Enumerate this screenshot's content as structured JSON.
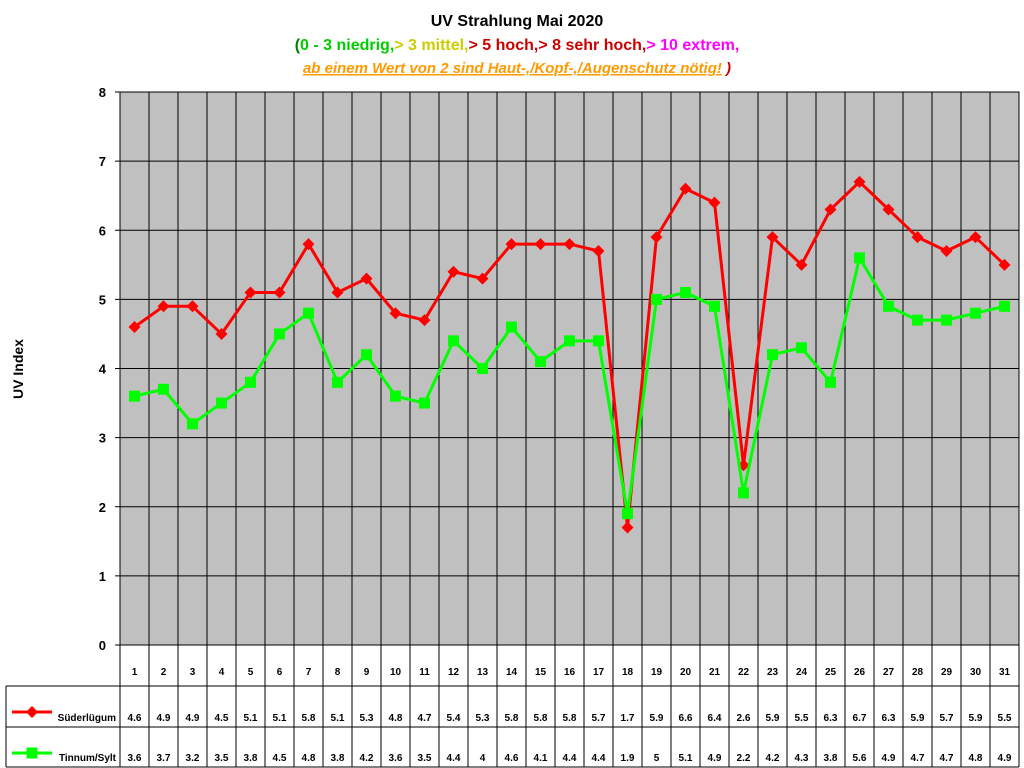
{
  "chart_data": {
    "type": "line",
    "title": "UV Strahlung Mai 2020",
    "subtitle_parts": [
      {
        "text": "(",
        "color": "#008000"
      },
      {
        "text": "0 - 3 niedrig,",
        "color": "#00cc00"
      },
      {
        "text": "> 3 mittel,",
        "color": "#cccc00"
      },
      {
        "text": "> 5 hoch,",
        "color": "#cc0000"
      },
      {
        "text": "> 8 sehr hoch,",
        "color": "#cc0000"
      },
      {
        "text": "> 10 extrem,",
        "color": "#ff00ff"
      }
    ],
    "note_text": "ab einem Wert von 2 sind Haut-,/Kopf-,/Augenschutz nötig!",
    "note_close": " )",
    "note_color": "#ff9900",
    "note_close_color": "#cc0000",
    "ylabel": "UV Index",
    "xlabel": "",
    "ylim": [
      0,
      8
    ],
    "yticks": [
      0,
      1,
      2,
      3,
      4,
      5,
      6,
      7,
      8
    ],
    "grid": true,
    "plot_background": "#c0c0c0",
    "legend_placement": "table-left",
    "categories": [
      "1",
      "2",
      "3",
      "4",
      "5",
      "6",
      "7",
      "8",
      "9",
      "10",
      "11",
      "12",
      "13",
      "14",
      "15",
      "16",
      "17",
      "18",
      "19",
      "20",
      "21",
      "22",
      "23",
      "24",
      "25",
      "26",
      "27",
      "28",
      "29",
      "30",
      "31"
    ],
    "series": [
      {
        "name": "Süderlügum",
        "color": "#ff0000",
        "marker": "diamond",
        "values": [
          4.6,
          4.9,
          4.9,
          4.5,
          5.1,
          5.1,
          5.8,
          5.1,
          5.3,
          4.8,
          4.7,
          5.4,
          5.3,
          5.8,
          5.8,
          5.8,
          5.7,
          1.7,
          5.9,
          6.6,
          6.4,
          2.6,
          5.9,
          5.5,
          6.3,
          6.7,
          6.3,
          5.9,
          5.7,
          5.9,
          5.5
        ],
        "labels": [
          "4.6",
          "4.9",
          "4.9",
          "4.5",
          "5.1",
          "5.1",
          "5.8",
          "5.1",
          "5.3",
          "4.8",
          "4.7",
          "5.4",
          "5.3",
          "5.8",
          "5.8",
          "5.8",
          "5.7",
          "1.7",
          "5.9",
          "6.6",
          "6.4",
          "2.6",
          "5.9",
          "5.5",
          "6.3",
          "6.7",
          "6.3",
          "5.9",
          "5.7",
          "5.9",
          "5.5"
        ]
      },
      {
        "name": "Tinnum/Sylt",
        "color": "#00ff00",
        "marker": "square",
        "values": [
          3.6,
          3.7,
          3.2,
          3.5,
          3.8,
          4.5,
          4.8,
          3.8,
          4.2,
          3.6,
          3.5,
          4.4,
          4.0,
          4.6,
          4.1,
          4.4,
          4.4,
          1.9,
          5.0,
          5.1,
          4.9,
          2.2,
          4.2,
          4.3,
          3.8,
          5.6,
          4.9,
          4.7,
          4.7,
          4.8,
          4.9
        ],
        "labels": [
          "3.6",
          "3.7",
          "3.2",
          "3.5",
          "3.8",
          "4.5",
          "4.8",
          "3.8",
          "4.2",
          "3.6",
          "3.5",
          "4.4",
          "4",
          "4.6",
          "4.1",
          "4.4",
          "4.4",
          "1.9",
          "5",
          "5.1",
          "4.9",
          "2.2",
          "4.2",
          "4.3",
          "3.8",
          "5.6",
          "4.9",
          "4.7",
          "4.7",
          "4.8",
          "4.9"
        ]
      }
    ]
  }
}
